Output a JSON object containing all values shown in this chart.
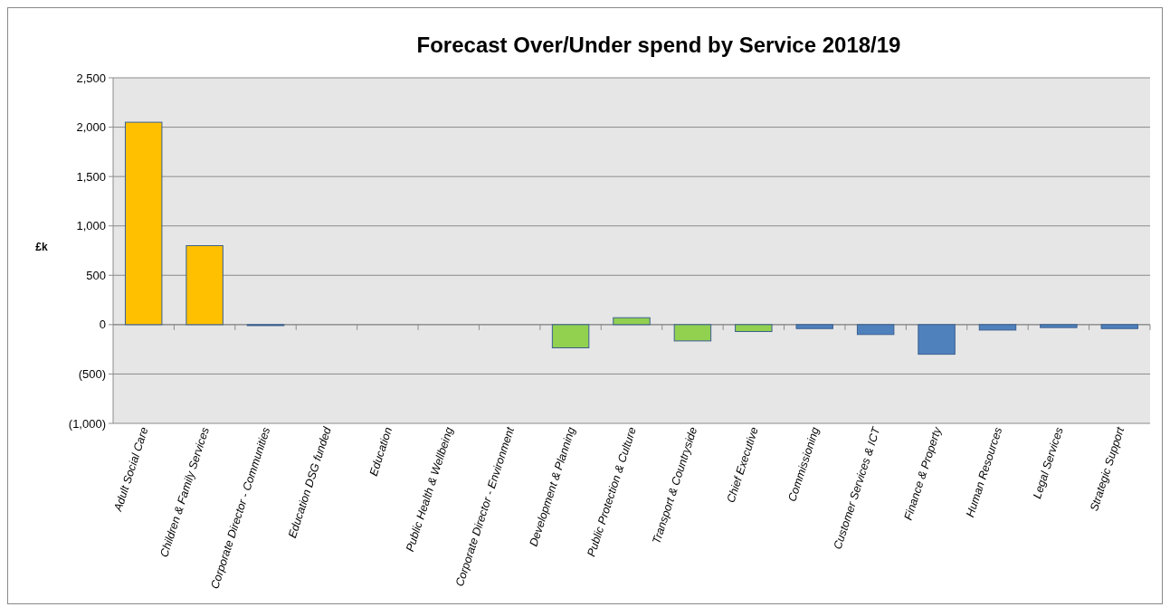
{
  "chart_data": {
    "type": "bar",
    "title": "Forecast Over/Under spend by Service 2018/19",
    "ylabel": "£k",
    "categories": [
      "Adult Social Care",
      "Children & Family Services",
      "Corporate Director - Communities",
      "Education DSG funded",
      "Education",
      "Public Health & Wellbeing",
      "Corporate Director - Environment",
      "Development & Planning",
      "Public Protection & Culture",
      "Transport & Countryside",
      "Chief Executive",
      "Commissioning",
      "Customer Services & ICT",
      "Finance & Property",
      "Human Resources",
      "Legal Services",
      "Strategic Support"
    ],
    "values": [
      2050,
      800,
      -10,
      0,
      0,
      0,
      0,
      -235,
      70,
      -165,
      -70,
      -40,
      -100,
      -300,
      -55,
      -30,
      -40
    ],
    "colors": [
      "#ffc000",
      "#ffc000",
      "#4f81bd",
      "#4f81bd",
      "#4f81bd",
      "#4f81bd",
      "#4f81bd",
      "#92d050",
      "#92d050",
      "#92d050",
      "#92d050",
      "#4f81bd",
      "#4f81bd",
      "#4f81bd",
      "#4f81bd",
      "#4f81bd",
      "#4f81bd"
    ],
    "ylim": [
      -1000,
      2500
    ],
    "yticks": [
      {
        "value": -1000,
        "label": "(1,000)"
      },
      {
        "value": -500,
        "label": "(500)"
      },
      0,
      {
        "value": 500,
        "label": "500"
      },
      {
        "value": 1000,
        "label": "1,000"
      },
      {
        "value": 1500,
        "label": "1,500"
      },
      {
        "value": 2000,
        "label": "2,000"
      },
      {
        "value": 2500,
        "label": "2,500"
      }
    ],
    "grid": "y"
  }
}
